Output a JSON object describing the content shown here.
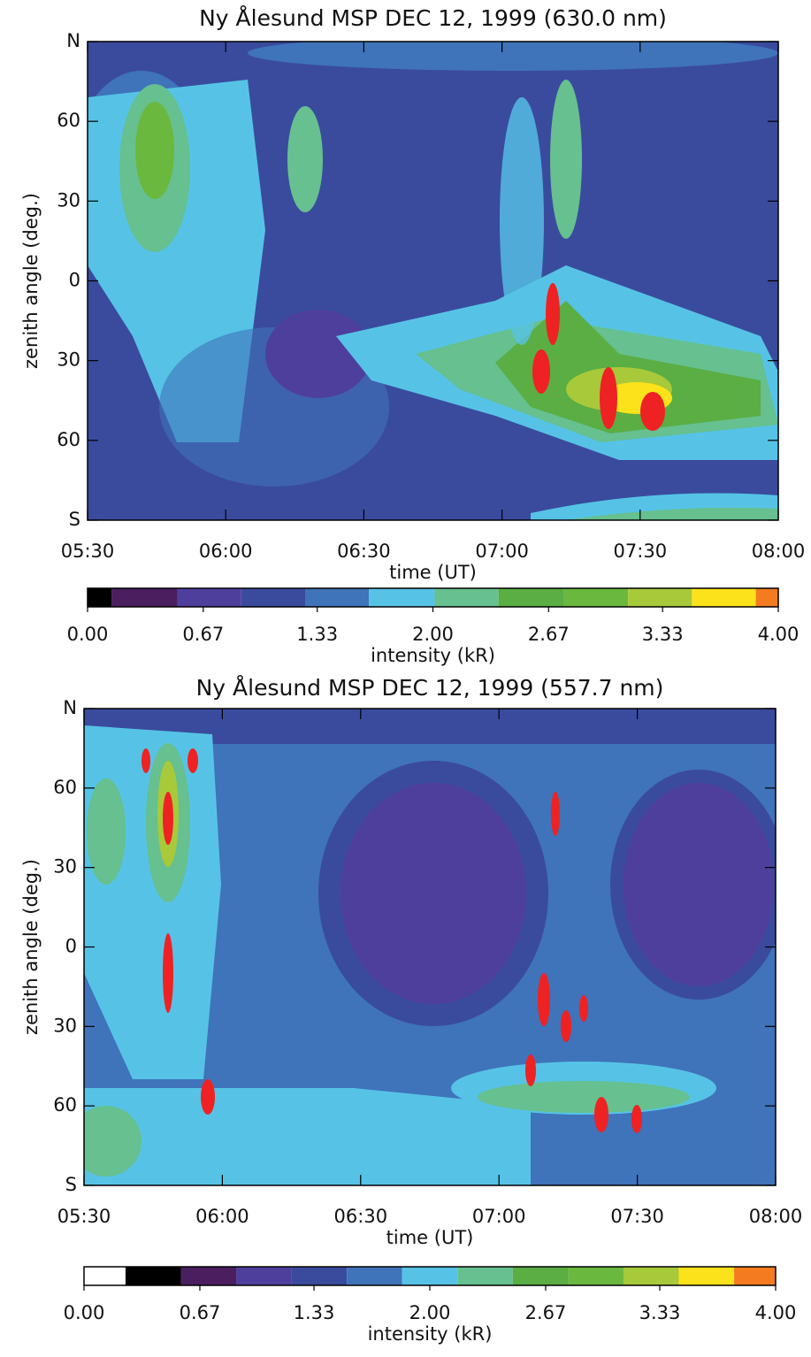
{
  "chart_data": [
    {
      "type": "contour",
      "title": "Ny Ålesund MSP DEC 12, 1999 (630.0 nm)",
      "xlabel": "time (UT)",
      "ylabel": "zenith angle (deg.)",
      "xlim": [
        5.5,
        8
      ],
      "xticks": [
        {
          "value": 5.5,
          "label": "05:30"
        },
        {
          "value": 6,
          "label": "06:00"
        },
        {
          "value": 6.5,
          "label": "06:30"
        },
        {
          "value": 7,
          "label": "07:00"
        },
        {
          "value": 7.5,
          "label": "07:30"
        },
        {
          "value": 8,
          "label": "08:00"
        }
      ],
      "ylim": [
        -90,
        90
      ],
      "yticks": [
        {
          "value": 90,
          "label": "N"
        },
        60,
        30,
        0,
        {
          "value": -30,
          "label": "30"
        },
        {
          "value": -60,
          "label": "60"
        },
        {
          "value": -90,
          "label": "S"
        }
      ],
      "colorbar_label": "intensity (kR)",
      "clim": [
        0,
        4
      ],
      "colorbar_ticks": [
        {
          "value": 0,
          "label": "0.00"
        },
        0.67,
        1.33,
        {
          "value": 2,
          "label": "2.00"
        },
        2.67,
        3.33,
        {
          "value": 4,
          "label": "4.00"
        }
      ],
      "colorbar_bounds": [
        0,
        0.14,
        0.52,
        0.89,
        1.26,
        1.63,
        2.01,
        2.38,
        2.76,
        3.13,
        3.5,
        3.87,
        4
      ],
      "colorbar_colors": [
        "#000000",
        "#4b1f5f",
        "#4f3f9d",
        "#3a4b9e",
        "#3f73ba",
        "#56c3e6",
        "#66c08f",
        "#5aae43",
        "#6ab83e",
        "#a8c93a",
        "#fbe21a",
        "#f47b20"
      ]
    },
    {
      "type": "contour",
      "title": "Ny Ålesund MSP DEC 12, 1999 (557.7 nm)",
      "xlabel": "time (UT)",
      "ylabel": "zenith angle (deg.)",
      "xlim": [
        5.5,
        8
      ],
      "xticks": [
        {
          "value": 5.5,
          "label": "05:30"
        },
        {
          "value": 6,
          "label": "06:00"
        },
        {
          "value": 6.5,
          "label": "06:30"
        },
        {
          "value": 7,
          "label": "07:00"
        },
        {
          "value": 7.5,
          "label": "07:30"
        },
        {
          "value": 8,
          "label": "08:00"
        }
      ],
      "ylim": [
        -90,
        90
      ],
      "yticks": [
        {
          "value": 90,
          "label": "N"
        },
        60,
        30,
        0,
        {
          "value": -30,
          "label": "30"
        },
        {
          "value": -60,
          "label": "60"
        },
        {
          "value": -90,
          "label": "S"
        }
      ],
      "colorbar_label": "intensity (kR)",
      "clim": [
        0,
        4
      ],
      "colorbar_ticks": [
        {
          "value": 0,
          "label": "0.00"
        },
        0.67,
        1.33,
        {
          "value": 2,
          "label": "2.00"
        },
        2.67,
        3.33,
        {
          "value": 4,
          "label": "4.00"
        }
      ],
      "colorbar_bounds": [
        0,
        0.24,
        0.56,
        0.88,
        1.2,
        1.52,
        1.84,
        2.16,
        2.48,
        2.8,
        3.12,
        3.44,
        3.76,
        4
      ],
      "colorbar_colors": [
        "#ffffff",
        "#000000",
        "#4b1f5f",
        "#4f3f9d",
        "#3a4b9e",
        "#3f73ba",
        "#56c3e6",
        "#66c08f",
        "#5aae43",
        "#6ab83e",
        "#a8c93a",
        "#fbe21a",
        "#f47b20"
      ]
    }
  ]
}
